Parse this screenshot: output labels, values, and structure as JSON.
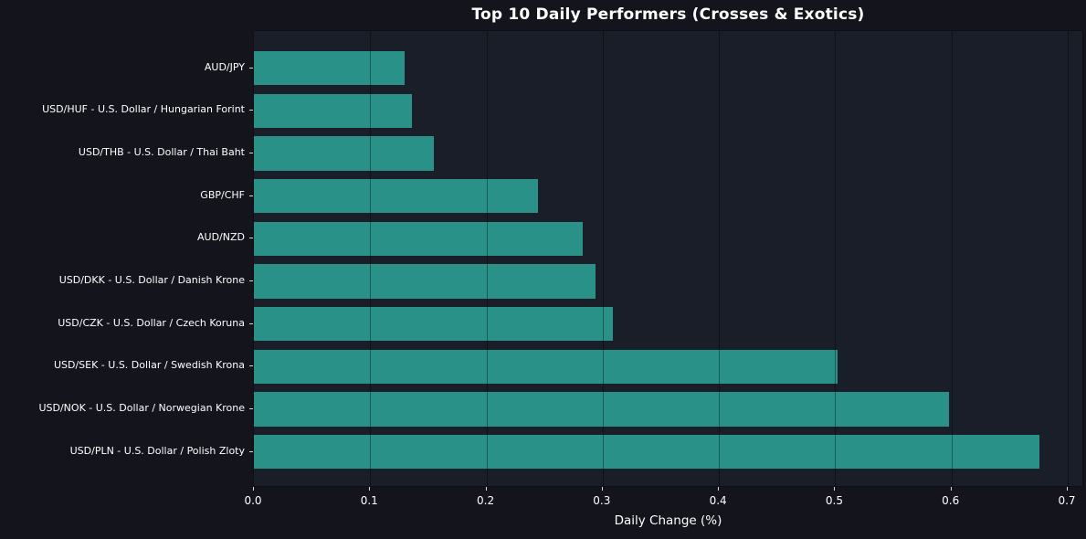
{
  "figure": {
    "background_color": "#14141d",
    "plot_background_color": "#1a1e28",
    "text_color": "#ffffff",
    "grid_color": "rgba(0,0,0,0.38)",
    "tick_color": "#d8d8d8"
  },
  "chart_data": {
    "type": "bar",
    "orientation": "horizontal",
    "title": "Top 10 Daily Performers (Crosses & Exotics)",
    "xlabel": "Daily Change (%)",
    "ylabel": "",
    "categories": [
      "AUD/JPY",
      "USD/HUF - U.S. Dollar / Hungarian Forint",
      "USD/THB - U.S. Dollar / Thai Baht",
      "GBP/CHF",
      "AUD/NZD",
      "USD/DKK - U.S. Dollar / Danish Krone",
      "USD/CZK - U.S. Dollar / Czech Koruna",
      "USD/SEK - U.S. Dollar / Swedish Krona",
      "USD/NOK - U.S. Dollar / Norwegian Krone",
      "USD/PLN - U.S. Dollar / Polish Zloty"
    ],
    "values": [
      0.13,
      0.136,
      0.155,
      0.244,
      0.283,
      0.294,
      0.309,
      0.502,
      0.598,
      0.676
    ],
    "x_ticks": [
      "0.0",
      "0.1",
      "0.2",
      "0.3",
      "0.4",
      "0.5",
      "0.6",
      "0.7"
    ],
    "xlim": [
      0.0,
      0.714
    ],
    "bar_color": "#2a9189",
    "grid": "vertical",
    "legend": null
  }
}
